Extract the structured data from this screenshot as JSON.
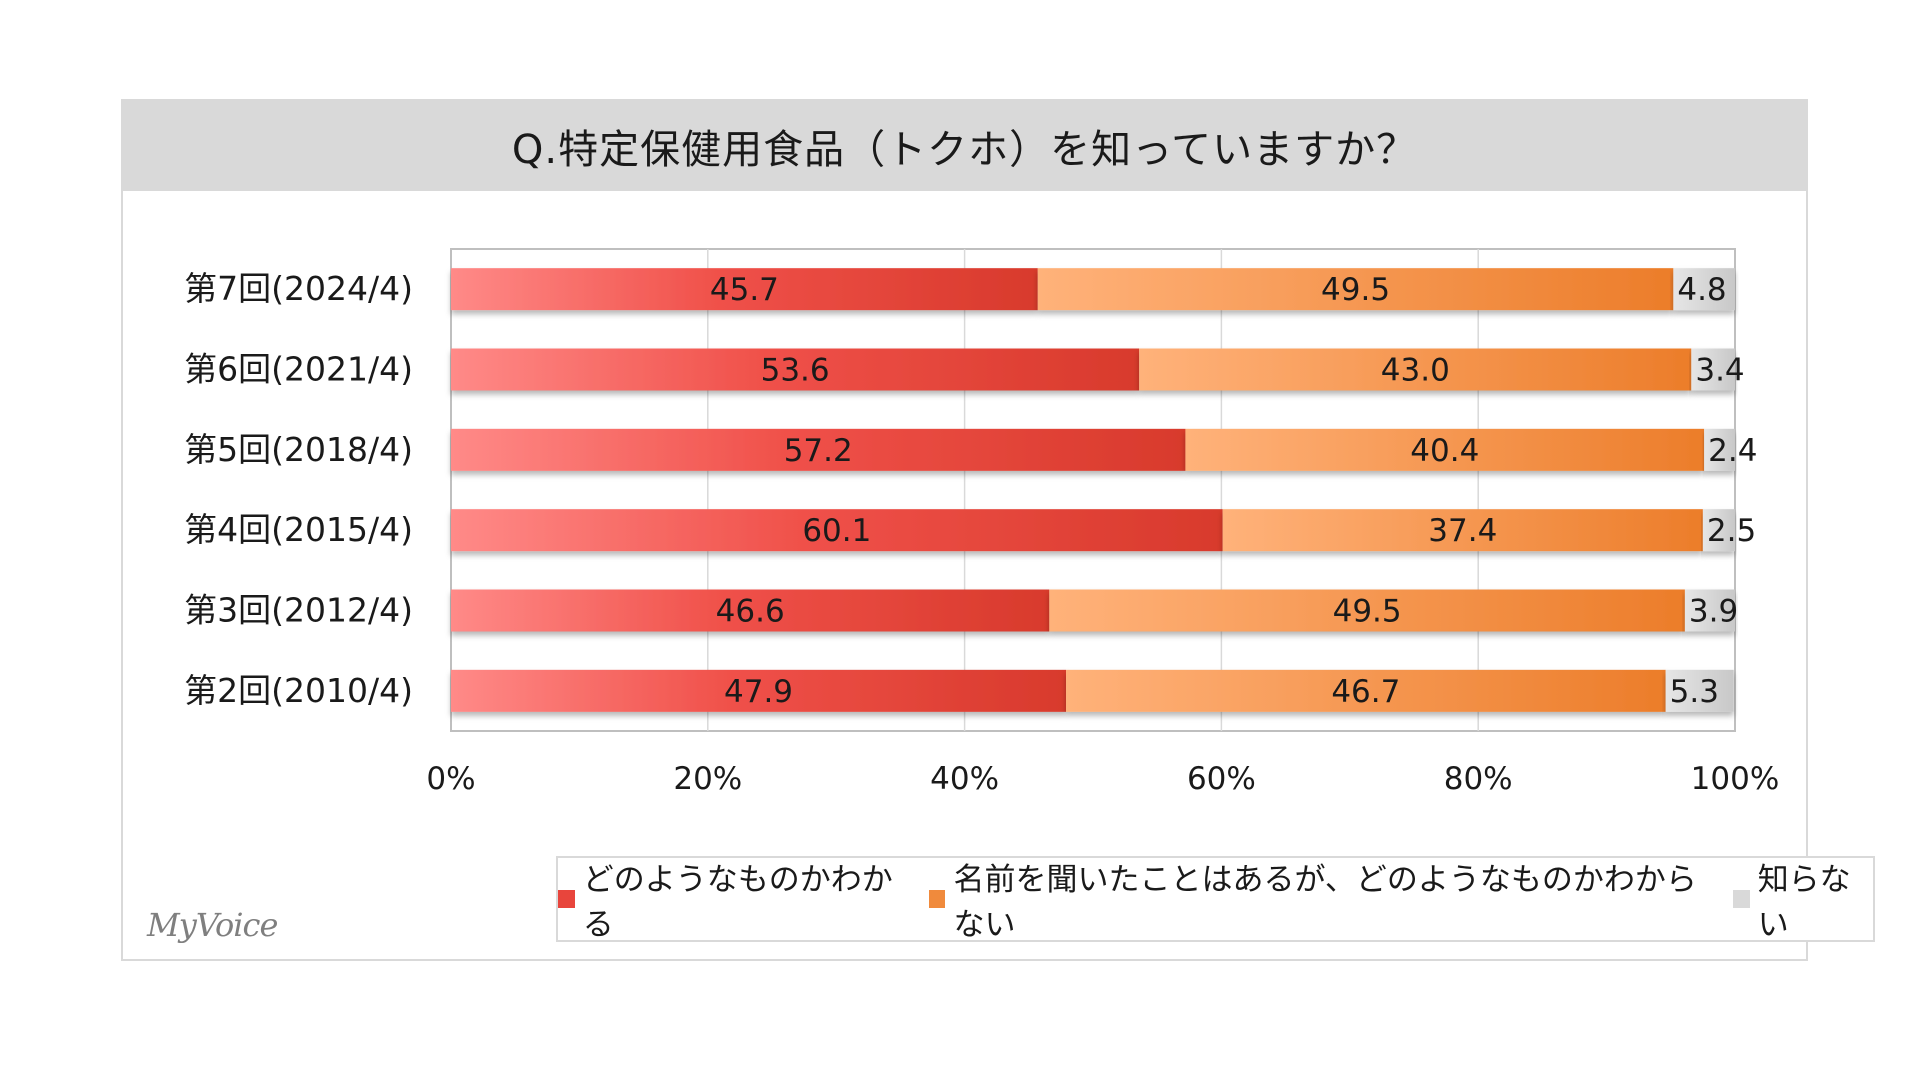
{
  "title": "Q.特定保健用食品（トクホ）を知っていますか？",
  "logo": "MyVoice",
  "colors": {
    "know": "#e8453c",
    "heard": "#f08a3c",
    "unknown": "#d9d9d9"
  },
  "chart_data": {
    "type": "bar",
    "orientation": "horizontal",
    "stacked": true,
    "percent_stacked": true,
    "categories": [
      "第7回(2024/4)",
      "第6回(2021/4)",
      "第5回(2018/4)",
      "第4回(2015/4)",
      "第3回(2012/4)",
      "第2回(2010/4)"
    ],
    "series": [
      {
        "name": "どのようなものかわかる",
        "values": [
          45.7,
          53.6,
          57.2,
          60.1,
          46.6,
          47.9
        ]
      },
      {
        "name": "名前を聞いたことはあるが、どのようなものかわからない",
        "values": [
          49.5,
          43.0,
          40.4,
          37.4,
          49.5,
          46.7
        ]
      },
      {
        "name": "知らない",
        "values": [
          4.8,
          3.4,
          2.4,
          2.5,
          3.9,
          5.3
        ]
      }
    ],
    "xlim": [
      0,
      100
    ],
    "xticks": [
      "0%",
      "20%",
      "40%",
      "60%",
      "80%",
      "100%"
    ],
    "grid": true,
    "legend_position": "bottom"
  }
}
